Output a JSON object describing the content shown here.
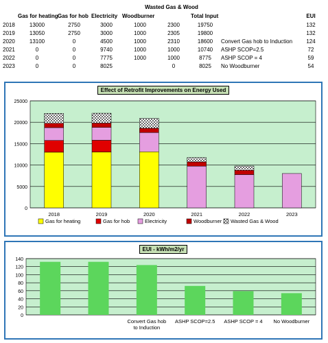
{
  "table": {
    "super_header": "Wasted Gas & Wood",
    "headers": [
      "",
      "Gas for heating",
      "Gas for hob",
      "Electricity",
      "Woodburner",
      "",
      "Total Input",
      "",
      "",
      "EUI"
    ],
    "rows": [
      [
        "2018",
        "13000",
        "2750",
        "3000",
        "1000",
        "2300",
        "19750",
        "",
        "132"
      ],
      [
        "2019",
        "13050",
        "2750",
        "3000",
        "1000",
        "2305",
        "19800",
        "",
        "132"
      ],
      [
        "2020",
        "13100",
        "0",
        "4500",
        "1000",
        "2310",
        "18600",
        "Convert Gas hob to Induction",
        "124"
      ],
      [
        "2021",
        "0",
        "0",
        "9740",
        "1000",
        "1000",
        "10740",
        "ASHP SCOP=2.5",
        "72"
      ],
      [
        "2022",
        "0",
        "0",
        "7775",
        "1000",
        "1000",
        "8775",
        "ASHP SCOP = 4",
        "59"
      ],
      [
        "2023",
        "0",
        "0",
        "8025",
        "",
        "0",
        "8025",
        "No Woodburner",
        "54"
      ]
    ]
  },
  "chart_data": [
    {
      "type": "bar",
      "stacked": true,
      "title": "Effect of Retrofit Improvements on Energy Used",
      "categories": [
        "2018",
        "2019",
        "2020",
        "2021",
        "2022",
        "2023"
      ],
      "series": [
        {
          "name": "Gas for heating",
          "color": "#ffff00",
          "values": [
            13000,
            13050,
            13100,
            0,
            0,
            0
          ]
        },
        {
          "name": "Gas for hob",
          "color": "#e00000",
          "values": [
            2750,
            2750,
            0,
            0,
            0,
            0
          ]
        },
        {
          "name": "Electricity",
          "color": "#e59ee0",
          "values": [
            3000,
            3000,
            4500,
            9740,
            7775,
            8025
          ]
        },
        {
          "name": "Woodburner",
          "color": "#c00000",
          "values": [
            1000,
            1000,
            1000,
            1000,
            1000,
            0
          ]
        },
        {
          "name": "Wasted Gas & Wood",
          "color": "pattern",
          "values": [
            2300,
            2305,
            2310,
            1000,
            1000,
            0
          ]
        }
      ],
      "ylim": [
        0,
        25000
      ],
      "yticks": [
        0,
        5000,
        10000,
        15000,
        20000,
        25000
      ],
      "grid": true,
      "legend": "bottom",
      "plot_bg": "#c6efce"
    },
    {
      "type": "bar",
      "title": "EUI - kWh/m2/yr",
      "categories": [
        "",
        "",
        "Convert Gas hob to Induction",
        "ASHP SCOP=2.5",
        "ASHP SCOP = 4",
        "No Woodburner"
      ],
      "values": [
        132,
        132,
        124,
        72,
        59,
        54
      ],
      "color": "#5cd65c",
      "ylim": [
        0,
        140
      ],
      "yticks": [
        0,
        20,
        40,
        60,
        80,
        100,
        120,
        140
      ],
      "grid": true,
      "plot_bg": "#c6efce"
    }
  ]
}
